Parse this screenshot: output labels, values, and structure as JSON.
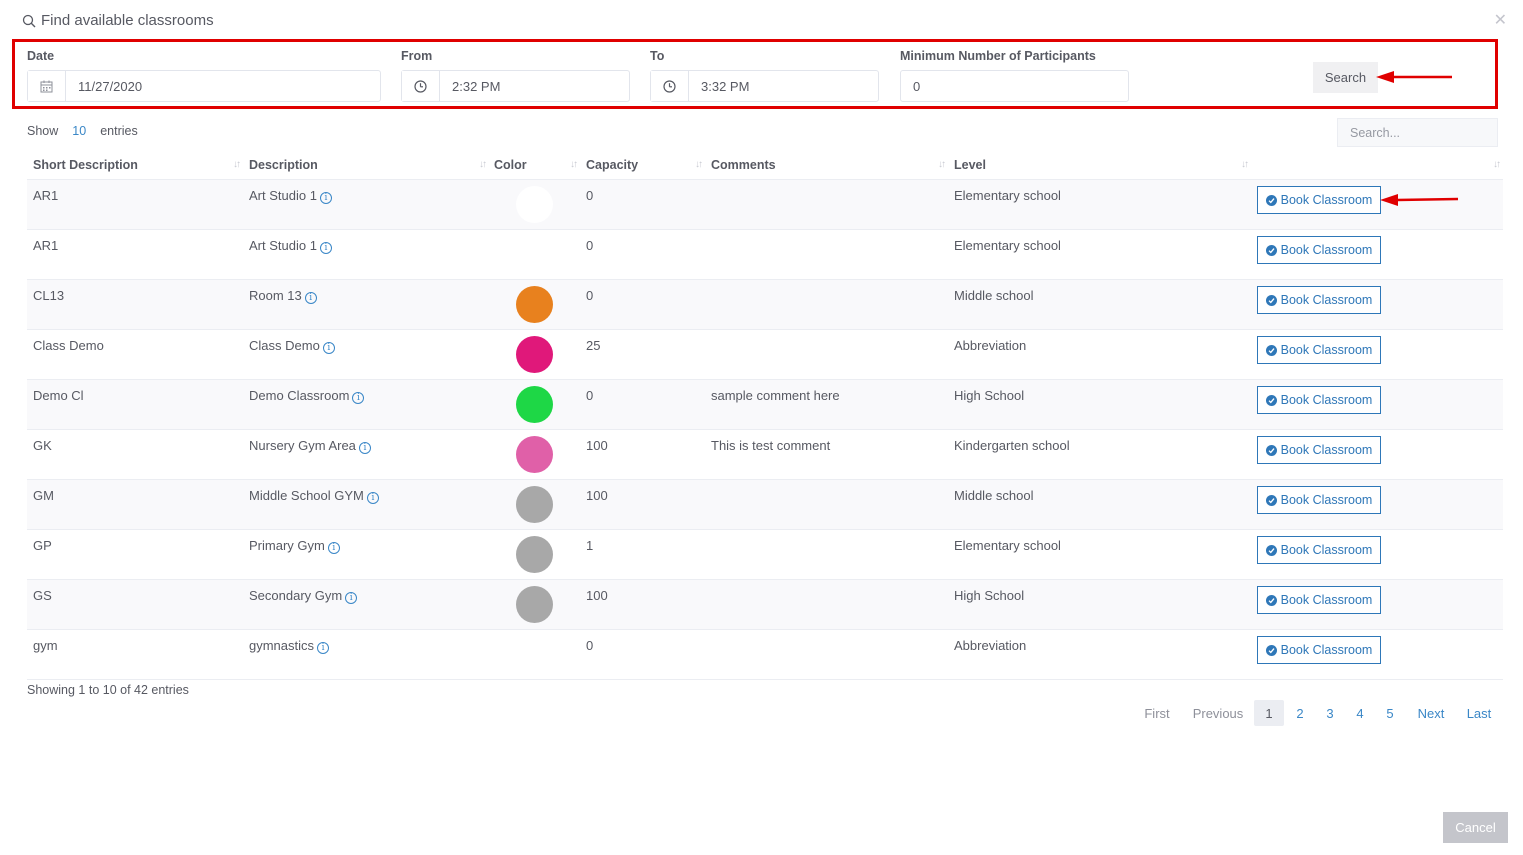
{
  "title": "Find available classrooms",
  "filters": {
    "date_label": "Date",
    "date_value": "11/27/2020",
    "from_label": "From",
    "from_value": "2:32 PM",
    "to_label": "To",
    "to_value": "3:32 PM",
    "min_label": "Minimum Number of Participants",
    "min_value": "0",
    "search_button": "Search"
  },
  "table_controls": {
    "show_label": "Show",
    "show_count": "10",
    "entries_label": "entries",
    "search_placeholder": "Search..."
  },
  "columns": [
    "Short Description",
    "Description",
    "Color",
    "Capacity",
    "Comments",
    "Level"
  ],
  "book_label": "Book Classroom",
  "rows": [
    {
      "short": "AR1",
      "desc": "Art Studio 1",
      "color": "#ffffff",
      "capacity": "0",
      "comments": "",
      "level": "Elementary school"
    },
    {
      "short": "AR1",
      "desc": "Art Studio 1",
      "color": "#ffffff",
      "capacity": "0",
      "comments": "",
      "level": "Elementary school"
    },
    {
      "short": "CL13",
      "desc": "Room 13",
      "color": "#e8811e",
      "capacity": "0",
      "comments": "",
      "level": "Middle school"
    },
    {
      "short": "Class Demo",
      "desc": "Class Demo",
      "color": "#e0187a",
      "capacity": "25",
      "comments": "",
      "level": "Abbreviation"
    },
    {
      "short": "Demo Cl",
      "desc": "Demo Classroom",
      "color": "#1ed746",
      "capacity": "0",
      "comments": "sample comment here",
      "level": "High School"
    },
    {
      "short": "GK",
      "desc": "Nursery Gym Area",
      "color": "#e060a8",
      "capacity": "100",
      "comments": "This is test comment",
      "level": "Kindergarten school"
    },
    {
      "short": "GM",
      "desc": "Middle School GYM",
      "color": "#a8a8a8",
      "capacity": "100",
      "comments": "",
      "level": "Middle school"
    },
    {
      "short": "GP",
      "desc": "Primary Gym",
      "color": "#a8a8a8",
      "capacity": "1",
      "comments": "",
      "level": "Elementary school"
    },
    {
      "short": "GS",
      "desc": "Secondary Gym",
      "color": "#a8a8a8",
      "capacity": "100",
      "comments": "",
      "level": "High School"
    },
    {
      "short": "gym",
      "desc": "gymnastics",
      "color": "#ffffff",
      "capacity": "0",
      "comments": "",
      "level": "Abbreviation"
    }
  ],
  "footer": {
    "showing": "Showing 1 to 10 of 42 entries",
    "first": "First",
    "previous": "Previous",
    "pages": [
      "1",
      "2",
      "3",
      "4",
      "5"
    ],
    "current_page": "1",
    "next": "Next",
    "last": "Last"
  },
  "cancel_button": "Cancel",
  "colors": {
    "annotation_red": "#e00000",
    "primary_blue": "#2e77b8"
  }
}
